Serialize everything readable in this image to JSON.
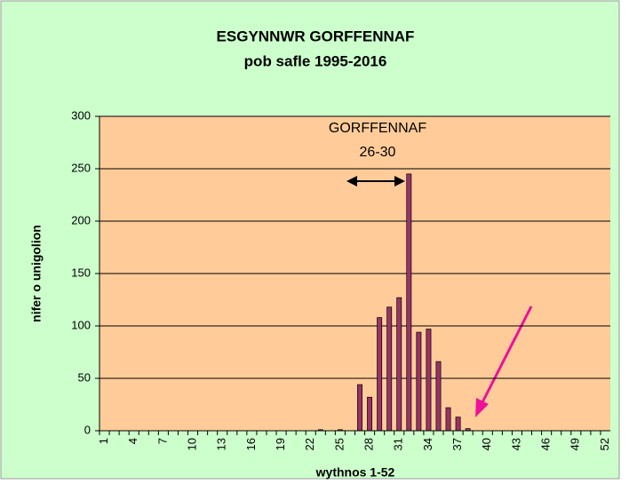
{
  "chart_data": {
    "type": "bar",
    "title": "ESGYNNWR GORFFENNAF",
    "subtitle": "pob safle 1995-2016",
    "x_label": "wythnos 1-52",
    "y_label": "nifer o unigolion",
    "annotations": [
      "GORFFENNAF",
      "26-30"
    ],
    "categories": [
      "1",
      null,
      null,
      "4",
      null,
      null,
      "7",
      null,
      null,
      "10",
      null,
      null,
      "13",
      null,
      null,
      "16",
      null,
      null,
      "19",
      null,
      null,
      "22",
      null,
      null,
      "25",
      null,
      null,
      "28",
      null,
      null,
      "31",
      null,
      null,
      "34",
      null,
      null,
      "37",
      null,
      null,
      "40",
      null,
      null,
      "43",
      null,
      null,
      "46",
      null,
      null,
      "49",
      null,
      null,
      "52"
    ],
    "values": [
      0,
      0,
      0,
      0,
      0,
      0,
      0,
      0,
      0,
      0,
      0,
      0,
      0,
      0,
      0,
      0,
      0,
      0,
      0,
      0,
      0,
      0,
      1,
      0,
      1,
      0,
      44,
      32,
      108,
      118,
      127,
      245,
      94,
      97,
      66,
      22,
      13,
      2,
      0,
      0,
      0,
      0,
      0,
      0,
      0,
      0,
      0,
      0,
      0,
      0,
      0,
      0
    ],
    "color": "#993366",
    "ylim": [
      0,
      300
    ],
    "yticks": [
      0,
      50,
      100,
      150,
      200,
      250,
      300
    ],
    "grid": true
  }
}
